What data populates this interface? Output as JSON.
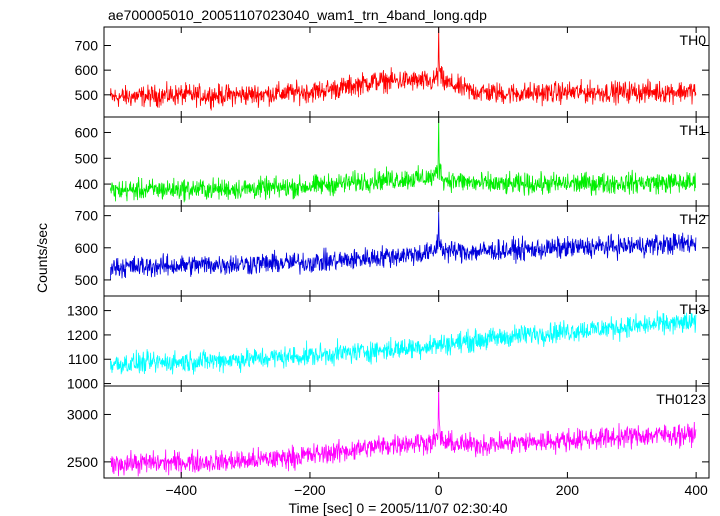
{
  "chart_data": {
    "type": "line",
    "title": "ae700005010_20051107023040_wam1_trn_4band_long.qdp",
    "xlabel": "Time [sec] 0 = 2005/11/07 02:30:40",
    "ylabel": "Counts/sec",
    "xlim": [
      -520,
      420
    ],
    "x_ticks": [
      "−400",
      "−200",
      "0",
      "200",
      "400"
    ],
    "x_tick_values": [
      -400,
      -200,
      0,
      200,
      400
    ],
    "grid": false,
    "panels": [
      {
        "name": "TH0",
        "color": "#ff0000",
        "ylim": [
          410,
          775
        ],
        "y_ticks": [
          500,
          600,
          700
        ],
        "series_x": [
          -510,
          -450,
          -400,
          -350,
          -300,
          -250,
          -200,
          -150,
          -100,
          -50,
          -10,
          0,
          10,
          50,
          100,
          150,
          200,
          250,
          300,
          350,
          400
        ],
        "series_y": [
          490,
          495,
          500,
          497,
          500,
          505,
          512,
          528,
          555,
          558,
          552,
          775,
          550,
          515,
          505,
          507,
          510,
          510,
          512,
          512,
          515
        ]
      },
      {
        "name": "TH1",
        "color": "#00ee00",
        "ylim": [
          315,
          660
        ],
        "y_ticks": [
          400,
          500,
          600
        ],
        "series_x": [
          -510,
          -450,
          -400,
          -350,
          -300,
          -250,
          -200,
          -150,
          -100,
          -50,
          -10,
          0,
          10,
          50,
          100,
          150,
          200,
          250,
          300,
          350,
          400
        ],
        "series_y": [
          375,
          378,
          380,
          380,
          382,
          385,
          392,
          402,
          415,
          420,
          425,
          660,
          418,
          405,
          398,
          400,
          402,
          403,
          405,
          405,
          405
        ]
      },
      {
        "name": "TH2",
        "color": "#0000dd",
        "ylim": [
          450,
          730
        ],
        "y_ticks": [
          500,
          600,
          700
        ],
        "series_x": [
          -510,
          -450,
          -400,
          -350,
          -300,
          -250,
          -200,
          -150,
          -100,
          -50,
          -10,
          0,
          10,
          50,
          100,
          150,
          200,
          250,
          300,
          350,
          400
        ],
        "series_y": [
          540,
          542,
          545,
          548,
          550,
          552,
          555,
          560,
          570,
          578,
          585,
          725,
          590,
          588,
          592,
          595,
          600,
          603,
          606,
          610,
          615
        ]
      },
      {
        "name": "TH3",
        "color": "#00ffff",
        "ylim": [
          990,
          1360
        ],
        "y_ticks": [
          1000,
          1100,
          1200,
          1300
        ],
        "series_x": [
          -510,
          -450,
          -400,
          -350,
          -300,
          -250,
          -200,
          -150,
          -100,
          -50,
          0,
          50,
          100,
          150,
          200,
          250,
          300,
          350,
          400
        ],
        "series_y": [
          1080,
          1085,
          1090,
          1095,
          1100,
          1108,
          1115,
          1125,
          1135,
          1145,
          1160,
          1175,
          1190,
          1205,
          1215,
          1225,
          1235,
          1245,
          1250
        ]
      },
      {
        "name": "TH0123",
        "color": "#ff00ff",
        "ylim": [
          2330,
          3300
        ],
        "y_ticks": [
          2500,
          3000
        ],
        "series_x": [
          -510,
          -450,
          -400,
          -350,
          -300,
          -250,
          -200,
          -150,
          -100,
          -50,
          -10,
          0,
          10,
          50,
          100,
          150,
          200,
          250,
          300,
          350,
          400
        ],
        "series_y": [
          2480,
          2490,
          2495,
          2500,
          2510,
          2535,
          2570,
          2610,
          2660,
          2700,
          2710,
          3260,
          2700,
          2680,
          2690,
          2710,
          2730,
          2750,
          2770,
          2785,
          2790
        ]
      }
    ]
  }
}
